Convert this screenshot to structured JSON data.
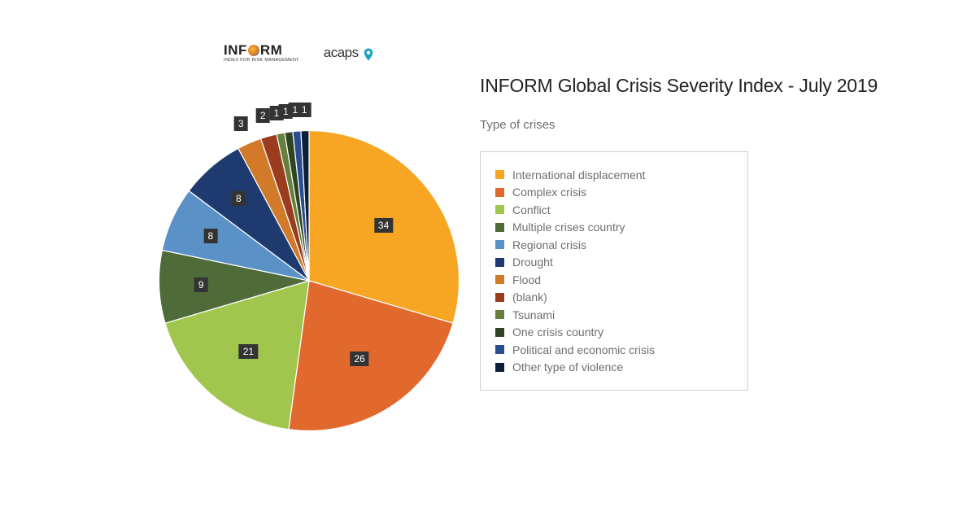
{
  "logos": {
    "inform_word_prefix": "INF",
    "inform_word_suffix": "RM",
    "inform_subtitle": "INDEX FOR RISK MANAGEMENT",
    "acaps_word": "acaps"
  },
  "title": "INFORM Global Crisis Severity Index - July 2019",
  "subtitle": "Type of crises",
  "chart": {
    "type": "pie",
    "background_color": "#ffffff",
    "label_bg_color": "#333333",
    "label_text_color": "#ffffff",
    "label_fontsize": 12,
    "legend_border_color": "#cfcfcf",
    "legend_text_color": "#6e6e6e",
    "legend_fontsize": 14,
    "start_angle_deg": 90,
    "direction": "clockwise",
    "slices": [
      {
        "label": "International displacement",
        "value": 34,
        "color": "#f6a623",
        "label_radius_factor": 0.62
      },
      {
        "label": "Complex crisis",
        "value": 26,
        "color": "#e1692e",
        "label_radius_factor": 0.62
      },
      {
        "label": "Conflict",
        "value": 21,
        "color": "#a1c64d",
        "label_radius_factor": 0.62
      },
      {
        "label": "Multiple crises country",
        "value": 9,
        "color": "#4f6b3a",
        "label_radius_factor": 0.72
      },
      {
        "label": "Regional crisis",
        "value": 8,
        "color": "#5a91c7",
        "label_radius_factor": 0.72
      },
      {
        "label": "Drought",
        "value": 8,
        "color": "#1f3a6e",
        "label_radius_factor": 0.72
      },
      {
        "label": "Flood",
        "value": 3,
        "color": "#d07a2a",
        "label_radius_factor": 1.14
      },
      {
        "label": "(blank)",
        "value": 2,
        "color": "#9a3d1e",
        "label_radius_factor": 1.14
      },
      {
        "label": "Tsunami",
        "value": 1,
        "color": "#667f3d",
        "label_radius_factor": 1.14
      },
      {
        "label": "One crisis country",
        "value": 1,
        "color": "#2e4422",
        "label_radius_factor": 1.14
      },
      {
        "label": "Political and economic crisis",
        "value": 1,
        "color": "#2a4d8f",
        "label_radius_factor": 1.14
      },
      {
        "label": "Other type of violence",
        "value": 1,
        "color": "#0d1e3a",
        "label_radius_factor": 1.14
      }
    ]
  }
}
